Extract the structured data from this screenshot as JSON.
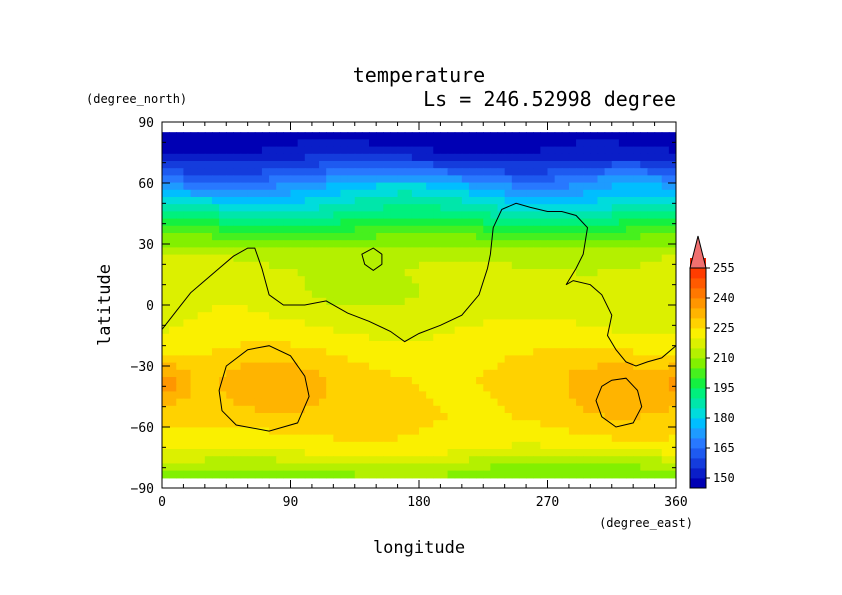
{
  "chart_data": {
    "type": "heatmap",
    "title": "temperature",
    "subtitle": "Ls = 246.52998 degree",
    "xlabel": "longitude",
    "ylabel": "latitude",
    "x_units": "(degree_east)",
    "y_units": "(degree_north)",
    "xlim": [
      0,
      360
    ],
    "ylim": [
      -90,
      90
    ],
    "data_lat_range": [
      -85,
      85
    ],
    "x_ticks": [
      "0",
      "90",
      "180",
      "270",
      "360"
    ],
    "y_ticks": [
      "90",
      "60",
      "30",
      "0",
      "−30",
      "−60",
      "−90"
    ],
    "x_tick_values": [
      0,
      90,
      180,
      270,
      360
    ],
    "y_tick_values": [
      90,
      60,
      30,
      0,
      -30,
      -60,
      -90
    ],
    "colorbar": {
      "levels": [
        145,
        150,
        155,
        160,
        165,
        170,
        175,
        180,
        185,
        190,
        195,
        200,
        205,
        210,
        215,
        220,
        225,
        230,
        235,
        240,
        245,
        250,
        255,
        260
      ],
      "tick_labels": [
        "150",
        "165",
        "180",
        "195",
        "210",
        "225",
        "240",
        "255"
      ],
      "tick_values": [
        150,
        165,
        180,
        195,
        210,
        225,
        240,
        255
      ],
      "colors": [
        "#0000b4",
        "#0a1ec8",
        "#143cdc",
        "#1e5af0",
        "#2878ff",
        "#1e9bff",
        "#00beff",
        "#00dcdc",
        "#00e6aa",
        "#00f07d",
        "#14f040",
        "#46f01e",
        "#82f000",
        "#b4f000",
        "#dcf000",
        "#faf000",
        "#ffd200",
        "#ffb400",
        "#ff9600",
        "#ff7800",
        "#ff5a00",
        "#ff3c00",
        "#f01e00"
      ],
      "overflow_color": "#f07070"
    },
    "zonal_profile": [
      {
        "lat": 85,
        "t": 147
      },
      {
        "lat": 75,
        "t": 150
      },
      {
        "lat": 65,
        "t": 160
      },
      {
        "lat": 57,
        "t": 172
      },
      {
        "lat": 50,
        "t": 182
      },
      {
        "lat": 42,
        "t": 193
      },
      {
        "lat": 35,
        "t": 203
      },
      {
        "lat": 25,
        "t": 214
      },
      {
        "lat": 15,
        "t": 217
      },
      {
        "lat": 5,
        "t": 218
      },
      {
        "lat": -5,
        "t": 219
      },
      {
        "lat": -15,
        "t": 221
      },
      {
        "lat": -25,
        "t": 224
      },
      {
        "lat": -35,
        "t": 226
      },
      {
        "lat": -45,
        "t": 226
      },
      {
        "lat": -55,
        "t": 226
      },
      {
        "lat": -65,
        "t": 224
      },
      {
        "lat": -72,
        "t": 221
      },
      {
        "lat": -80,
        "t": 212
      },
      {
        "lat": -85,
        "t": 208
      }
    ],
    "regional_anomalies": [
      {
        "lon": 150,
        "lat": 60,
        "dlon": 90,
        "dlat": 12,
        "dt": 8
      },
      {
        "lon": 320,
        "lat": 62,
        "dlon": 40,
        "dlat": 8,
        "dt": 6
      },
      {
        "lon": 30,
        "lat": 58,
        "dlon": 45,
        "dlat": 8,
        "dt": -4
      },
      {
        "lon": 200,
        "lat": 8,
        "dlon": 70,
        "dlat": 15,
        "dt": -3
      },
      {
        "lon": 120,
        "lat": 5,
        "dlon": 40,
        "dlat": 10,
        "dt": -2
      },
      {
        "lon": 70,
        "lat": -40,
        "dlon": 45,
        "dlat": 17,
        "dt": 7
      },
      {
        "lon": 325,
        "lat": -40,
        "dlon": 40,
        "dlat": 15,
        "dt": 8
      },
      {
        "lon": 5,
        "lat": -38,
        "dlon": 15,
        "dlat": 10,
        "dt": 8
      },
      {
        "lon": 300,
        "lat": -78,
        "dlon": 70,
        "dlat": 8,
        "dt": -5
      }
    ],
    "contours": [
      {
        "name": "topography-line-1",
        "closed": false,
        "points": [
          [
            0,
            -12
          ],
          [
            10,
            -3
          ],
          [
            20,
            6
          ],
          [
            30,
            12
          ],
          [
            40,
            18
          ],
          [
            50,
            24
          ],
          [
            60,
            28
          ],
          [
            65,
            28
          ],
          [
            70,
            18
          ],
          [
            75,
            5
          ],
          [
            85,
            0
          ],
          [
            100,
            0
          ],
          [
            115,
            2
          ],
          [
            130,
            -4
          ],
          [
            145,
            -8
          ],
          [
            160,
            -13
          ],
          [
            170,
            -18
          ],
          [
            180,
            -14
          ],
          [
            195,
            -10
          ],
          [
            210,
            -5
          ],
          [
            222,
            5
          ],
          [
            228,
            18
          ],
          [
            230,
            25
          ],
          [
            232,
            38
          ],
          [
            238,
            47
          ],
          [
            248,
            50
          ],
          [
            258,
            48
          ],
          [
            270,
            46
          ],
          [
            280,
            46
          ],
          [
            290,
            44
          ],
          [
            298,
            38
          ],
          [
            295,
            25
          ],
          [
            290,
            18
          ],
          [
            283,
            10
          ],
          [
            288,
            12
          ],
          [
            300,
            10
          ],
          [
            308,
            5
          ],
          [
            315,
            -5
          ],
          [
            312,
            -15
          ],
          [
            318,
            -22
          ],
          [
            325,
            -28
          ],
          [
            332,
            -30
          ],
          [
            340,
            -28
          ],
          [
            350,
            -26
          ],
          [
            360,
            -20
          ]
        ]
      },
      {
        "name": "topography-line-2",
        "closed": true,
        "points": [
          [
            140,
            25
          ],
          [
            148,
            28
          ],
          [
            154,
            25
          ],
          [
            154,
            20
          ],
          [
            148,
            17
          ],
          [
            142,
            20
          ]
        ]
      },
      {
        "name": "topography-line-3",
        "closed": true,
        "points": [
          [
            60,
            -22
          ],
          [
            75,
            -20
          ],
          [
            90,
            -25
          ],
          [
            100,
            -35
          ],
          [
            103,
            -45
          ],
          [
            95,
            -58
          ],
          [
            75,
            -62
          ],
          [
            52,
            -59
          ],
          [
            42,
            -52
          ],
          [
            40,
            -42
          ],
          [
            45,
            -30
          ]
        ]
      },
      {
        "name": "topography-line-4",
        "closed": true,
        "points": [
          [
            315,
            -37
          ],
          [
            325,
            -36
          ],
          [
            333,
            -42
          ],
          [
            336,
            -50
          ],
          [
            330,
            -58
          ],
          [
            318,
            -60
          ],
          [
            308,
            -55
          ],
          [
            304,
            -47
          ],
          [
            308,
            -40
          ]
        ]
      }
    ]
  }
}
